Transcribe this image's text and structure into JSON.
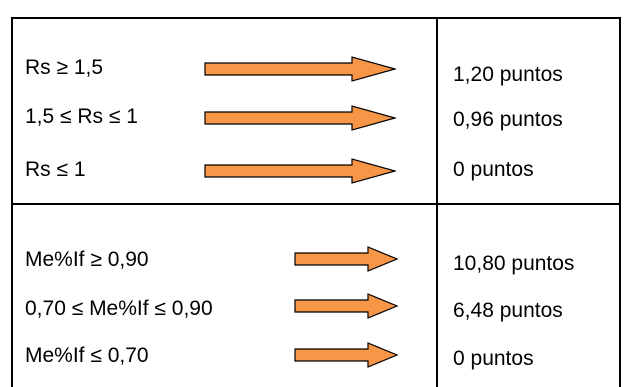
{
  "colors": {
    "arrow_fill": "#f79646",
    "arrow_stroke": "#000000",
    "border": "#000000"
  },
  "icons": {
    "arrow": "right-arrow-icon"
  },
  "sections": [
    {
      "rows": [
        {
          "condition": "Rs ≥ 1,5",
          "points": "1,20 puntos"
        },
        {
          "condition": "1,5 ≤ Rs ≤ 1",
          "points": "0,96 puntos"
        },
        {
          "condition": "Rs ≤ 1",
          "points": "0 puntos"
        }
      ]
    },
    {
      "rows": [
        {
          "condition": "Me%If ≥ 0,90",
          "points": "10,80 puntos"
        },
        {
          "condition": "0,70 ≤ Me%If ≤ 0,90",
          "points": "6,48 puntos"
        },
        {
          "condition": "Me%If ≤ 0,70",
          "points": "0 puntos"
        }
      ]
    }
  ]
}
